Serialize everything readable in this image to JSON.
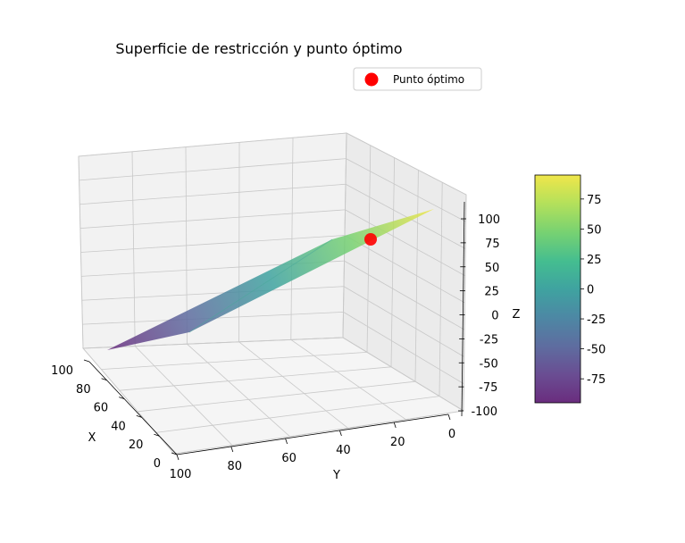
{
  "chart_data": {
    "type": "surface3d",
    "title": "Superficie de restricción y punto óptimo",
    "xlabel": "X",
    "ylabel": "Y",
    "zlabel": "Z",
    "xticks": [
      0,
      20,
      40,
      60,
      80,
      100
    ],
    "yticks": [
      0,
      20,
      40,
      60,
      80,
      100
    ],
    "zticks": [
      -100,
      -75,
      -50,
      -25,
      0,
      25,
      50,
      75,
      100
    ],
    "xlim": [
      0,
      100
    ],
    "ylim": [
      0,
      100
    ],
    "zlim": [
      -100,
      100
    ],
    "colormap": "viridis",
    "colorbar": {
      "range": [
        -95,
        95
      ],
      "ticks": [
        -75,
        -50,
        -25,
        0,
        25,
        50,
        75
      ]
    },
    "legend": {
      "position": "top-right",
      "entries": [
        {
          "label": "Punto óptimo",
          "color": "#ff0000",
          "marker": "circle"
        }
      ]
    },
    "surface_edges": [
      {
        "x": 100,
        "y": 100,
        "z": -95
      },
      {
        "x": 100,
        "y": 0,
        "z": -40
      },
      {
        "x": 0,
        "y": 0,
        "z": 95
      },
      {
        "x": 0,
        "y": 100,
        "z": 40
      }
    ],
    "optimal_point": {
      "x": 0,
      "y": 40,
      "z": 70,
      "label": "Punto óptimo",
      "color": "#ff0000"
    }
  }
}
